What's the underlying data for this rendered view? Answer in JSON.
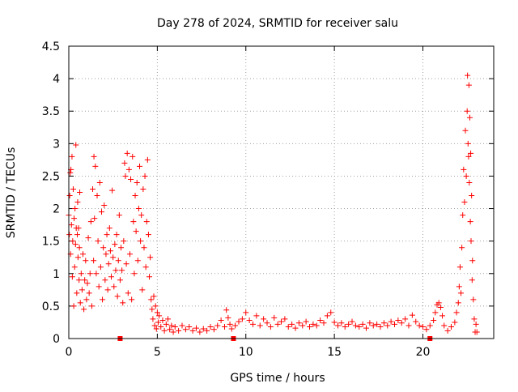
{
  "chart_data": {
    "type": "scatter",
    "title": "Day 278 of 2024, SRMTID for receiver salu",
    "xlabel": "GPS time / hours",
    "ylabel": "SRMTID / TECUs",
    "xlim": [
      0,
      24
    ],
    "ylim": [
      0,
      4.5
    ],
    "x_ticks": [
      0,
      5,
      10,
      15,
      20
    ],
    "x_tick_labels": [
      "0",
      "5",
      "10",
      "15",
      "20"
    ],
    "y_ticks": [
      0,
      0.5,
      1,
      1.5,
      2,
      2.5,
      3,
      3.5,
      4,
      4.5
    ],
    "y_tick_labels": [
      "0",
      "0.5",
      "1",
      "1.5",
      "2",
      "2.5",
      "3",
      "3.5",
      "4",
      "4.5"
    ],
    "grid": true,
    "marker": "plus",
    "series_color": "#ff0000",
    "series": [
      {
        "name": "SRMTID",
        "points": [
          [
            0.0,
            1.9
          ],
          [
            0.03,
            1.6
          ],
          [
            0.05,
            2.2
          ],
          [
            0.08,
            2.55
          ],
          [
            0.1,
            1.3
          ],
          [
            0.12,
            2.6
          ],
          [
            0.15,
            1.75
          ],
          [
            0.18,
            2.8
          ],
          [
            0.2,
            0.95
          ],
          [
            0.22,
            1.5
          ],
          [
            0.25,
            2.3
          ],
          [
            0.28,
            0.5
          ],
          [
            0.3,
            1.85
          ],
          [
            0.33,
            1.1
          ],
          [
            0.35,
            2.0
          ],
          [
            0.38,
            1.45
          ],
          [
            0.4,
            2.98
          ],
          [
            0.42,
            1.7
          ],
          [
            0.45,
            0.7
          ],
          [
            0.48,
            1.6
          ],
          [
            0.5,
            2.1
          ],
          [
            0.52,
            1.25
          ],
          [
            0.55,
            1.7
          ],
          [
            0.58,
            0.9
          ],
          [
            0.6,
            1.4
          ],
          [
            0.62,
            2.25
          ],
          [
            0.65,
            0.55
          ],
          [
            0.7,
            1.0
          ],
          [
            0.75,
            0.75
          ],
          [
            0.8,
            1.3
          ],
          [
            0.85,
            0.45
          ],
          [
            0.9,
            0.9
          ],
          [
            0.95,
            1.2
          ],
          [
            1.0,
            0.6
          ],
          [
            1.05,
            0.85
          ],
          [
            1.1,
            1.55
          ],
          [
            1.15,
            0.7
          ],
          [
            1.2,
            1.0
          ],
          [
            1.25,
            1.8
          ],
          [
            1.3,
            0.5
          ],
          [
            1.35,
            2.3
          ],
          [
            1.4,
            1.2
          ],
          [
            1.42,
            2.8
          ],
          [
            1.45,
            1.85
          ],
          [
            1.5,
            2.65
          ],
          [
            1.55,
            1.0
          ],
          [
            1.6,
            2.2
          ],
          [
            1.65,
            1.5
          ],
          [
            1.7,
            0.8
          ],
          [
            1.75,
            2.4
          ],
          [
            1.8,
            1.1
          ],
          [
            1.85,
            1.95
          ],
          [
            1.9,
            0.6
          ],
          [
            1.95,
            1.4
          ],
          [
            2.0,
            2.05
          ],
          [
            2.05,
            0.9
          ],
          [
            2.1,
            1.3
          ],
          [
            2.15,
            1.6
          ],
          [
            2.2,
            0.75
          ],
          [
            2.25,
            1.15
          ],
          [
            2.3,
            1.7
          ],
          [
            2.35,
            1.35
          ],
          [
            2.4,
            0.95
          ],
          [
            2.45,
            2.28
          ],
          [
            2.5,
            1.25
          ],
          [
            2.55,
            0.8
          ],
          [
            2.6,
            1.45
          ],
          [
            2.65,
            1.05
          ],
          [
            2.7,
            1.6
          ],
          [
            2.75,
            0.65
          ],
          [
            2.8,
            1.2
          ],
          [
            2.85,
            1.9
          ],
          [
            2.9,
            0.9
          ],
          [
            2.95,
            1.4
          ],
          [
            3.0,
            1.05
          ],
          [
            3.05,
            0.55
          ],
          [
            3.1,
            1.5
          ],
          [
            3.15,
            2.7
          ],
          [
            3.2,
            2.5
          ],
          [
            3.25,
            1.15
          ],
          [
            3.3,
            2.85
          ],
          [
            3.35,
            0.7
          ],
          [
            3.4,
            2.6
          ],
          [
            3.45,
            1.3
          ],
          [
            3.5,
            2.45
          ],
          [
            3.55,
            0.6
          ],
          [
            3.6,
            2.8
          ],
          [
            3.65,
            1.8
          ],
          [
            3.7,
            1.0
          ],
          [
            3.75,
            2.2
          ],
          [
            3.8,
            1.65
          ],
          [
            3.85,
            2.4
          ],
          [
            3.9,
            1.2
          ],
          [
            3.95,
            2.0
          ],
          [
            4.0,
            2.65
          ],
          [
            4.05,
            1.5
          ],
          [
            4.1,
            1.9
          ],
          [
            4.15,
            0.75
          ],
          [
            4.2,
            2.3
          ],
          [
            4.25,
            1.4
          ],
          [
            4.3,
            2.5
          ],
          [
            4.35,
            1.1
          ],
          [
            4.4,
            1.8
          ],
          [
            4.45,
            2.75
          ],
          [
            4.5,
            1.6
          ],
          [
            4.55,
            0.95
          ],
          [
            4.6,
            1.25
          ],
          [
            4.65,
            0.6
          ],
          [
            4.7,
            0.45
          ],
          [
            4.75,
            0.3
          ],
          [
            4.8,
            0.65
          ],
          [
            4.85,
            0.2
          ],
          [
            4.9,
            0.5
          ],
          [
            4.95,
            0.15
          ],
          [
            5.0,
            0.4
          ],
          [
            5.05,
            0.25
          ],
          [
            5.1,
            0.35
          ],
          [
            5.2,
            0.18
          ],
          [
            5.3,
            0.28
          ],
          [
            5.4,
            0.12
          ],
          [
            5.5,
            0.22
          ],
          [
            5.6,
            0.3
          ],
          [
            5.7,
            0.14
          ],
          [
            5.8,
            0.2
          ],
          [
            5.9,
            0.1
          ],
          [
            6.0,
            0.18
          ],
          [
            6.2,
            0.12
          ],
          [
            6.4,
            0.2
          ],
          [
            6.6,
            0.14
          ],
          [
            6.8,
            0.18
          ],
          [
            7.0,
            0.12
          ],
          [
            7.2,
            0.16
          ],
          [
            7.4,
            0.1
          ],
          [
            7.6,
            0.15
          ],
          [
            7.8,
            0.12
          ],
          [
            8.0,
            0.18
          ],
          [
            8.2,
            0.14
          ],
          [
            8.4,
            0.2
          ],
          [
            8.6,
            0.28
          ],
          [
            8.8,
            0.18
          ],
          [
            8.9,
            0.44
          ],
          [
            9.0,
            0.32
          ],
          [
            9.1,
            0.22
          ],
          [
            9.2,
            0.15
          ],
          [
            9.4,
            0.2
          ],
          [
            9.6,
            0.26
          ],
          [
            9.8,
            0.3
          ],
          [
            10.0,
            0.4
          ],
          [
            10.2,
            0.28
          ],
          [
            10.4,
            0.22
          ],
          [
            10.6,
            0.35
          ],
          [
            10.8,
            0.2
          ],
          [
            11.0,
            0.3
          ],
          [
            11.2,
            0.24
          ],
          [
            11.4,
            0.18
          ],
          [
            11.6,
            0.32
          ],
          [
            11.8,
            0.22
          ],
          [
            12.0,
            0.26
          ],
          [
            12.2,
            0.3
          ],
          [
            12.4,
            0.18
          ],
          [
            12.6,
            0.22
          ],
          [
            12.8,
            0.16
          ],
          [
            13.0,
            0.24
          ],
          [
            13.2,
            0.2
          ],
          [
            13.4,
            0.26
          ],
          [
            13.6,
            0.18
          ],
          [
            13.8,
            0.22
          ],
          [
            14.0,
            0.2
          ],
          [
            14.2,
            0.28
          ],
          [
            14.4,
            0.24
          ],
          [
            14.6,
            0.35
          ],
          [
            14.8,
            0.4
          ],
          [
            15.0,
            0.25
          ],
          [
            15.2,
            0.2
          ],
          [
            15.4,
            0.24
          ],
          [
            15.6,
            0.18
          ],
          [
            15.8,
            0.22
          ],
          [
            16.0,
            0.26
          ],
          [
            16.2,
            0.2
          ],
          [
            16.4,
            0.18
          ],
          [
            16.6,
            0.22
          ],
          [
            16.8,
            0.16
          ],
          [
            17.0,
            0.24
          ],
          [
            17.2,
            0.2
          ],
          [
            17.4,
            0.22
          ],
          [
            17.6,
            0.18
          ],
          [
            17.8,
            0.24
          ],
          [
            18.0,
            0.2
          ],
          [
            18.2,
            0.26
          ],
          [
            18.4,
            0.22
          ],
          [
            18.6,
            0.28
          ],
          [
            18.8,
            0.24
          ],
          [
            19.0,
            0.3
          ],
          [
            19.2,
            0.2
          ],
          [
            19.4,
            0.36
          ],
          [
            19.6,
            0.26
          ],
          [
            19.8,
            0.2
          ],
          [
            20.0,
            0.18
          ],
          [
            20.2,
            0.14
          ],
          [
            20.4,
            0.2
          ],
          [
            20.6,
            0.28
          ],
          [
            20.7,
            0.4
          ],
          [
            20.8,
            0.52
          ],
          [
            20.9,
            0.55
          ],
          [
            21.0,
            0.48
          ],
          [
            21.1,
            0.35
          ],
          [
            21.2,
            0.2
          ],
          [
            21.4,
            0.12
          ],
          [
            21.6,
            0.18
          ],
          [
            21.8,
            0.25
          ],
          [
            21.9,
            0.4
          ],
          [
            22.0,
            0.55
          ],
          [
            22.05,
            0.8
          ],
          [
            22.1,
            1.1
          ],
          [
            22.15,
            0.7
          ],
          [
            22.2,
            1.4
          ],
          [
            22.25,
            1.9
          ],
          [
            22.3,
            2.6
          ],
          [
            22.35,
            2.1
          ],
          [
            22.4,
            3.2
          ],
          [
            22.45,
            2.5
          ],
          [
            22.5,
            3.5
          ],
          [
            22.52,
            4.05
          ],
          [
            22.55,
            3.0
          ],
          [
            22.58,
            2.8
          ],
          [
            22.6,
            3.9
          ],
          [
            22.62,
            2.4
          ],
          [
            22.65,
            3.4
          ],
          [
            22.68,
            1.8
          ],
          [
            22.7,
            2.85
          ],
          [
            22.72,
            1.5
          ],
          [
            22.75,
            2.2
          ],
          [
            22.78,
            0.9
          ],
          [
            22.8,
            1.2
          ],
          [
            22.85,
            0.6
          ],
          [
            22.9,
            0.3
          ],
          [
            22.95,
            0.1
          ],
          [
            23.0,
            0.22
          ],
          [
            23.05,
            0.1
          ]
        ]
      }
    ],
    "flags": [
      {
        "x": 2.9,
        "y": 0
      },
      {
        "x": 9.3,
        "y": 0
      },
      {
        "x": 20.4,
        "y": 0
      }
    ]
  }
}
